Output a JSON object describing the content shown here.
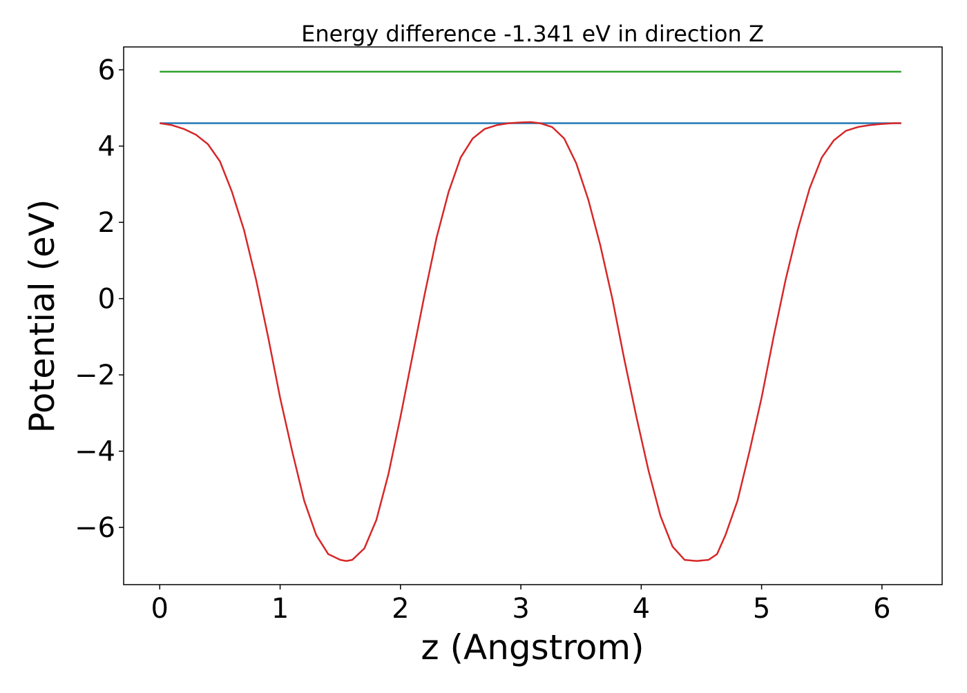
{
  "chart_data": {
    "type": "line",
    "title": "Energy difference -1.341 eV in direction Z",
    "xlabel": "z (Angstrom)",
    "ylabel": "Potential (eV)",
    "xlim": [
      -0.3,
      6.5
    ],
    "ylim": [
      -7.5,
      6.6
    ],
    "xticks": [
      0,
      1,
      2,
      3,
      4,
      5,
      6
    ],
    "xtick_labels": [
      "0",
      "1",
      "2",
      "3",
      "4",
      "5",
      "6"
    ],
    "yticks": [
      -6,
      -4,
      -2,
      0,
      2,
      4,
      6
    ],
    "ytick_labels": [
      "−6",
      "−4",
      "−2",
      "0",
      "2",
      "4",
      "6"
    ],
    "grid": false,
    "series": [
      {
        "color": "#2ca02c",
        "x": [
          0,
          6.16
        ],
        "y": [
          5.95,
          5.95
        ]
      },
      {
        "color": "#1f77b4",
        "x": [
          0,
          6.16
        ],
        "y": [
          4.6,
          4.6
        ]
      },
      {
        "color": "#d62728",
        "x": [
          0,
          0.1,
          0.2,
          0.3,
          0.4,
          0.5,
          0.6,
          0.7,
          0.8,
          0.9,
          1.0,
          1.1,
          1.2,
          1.3,
          1.4,
          1.5,
          1.55,
          1.6,
          1.7,
          1.8,
          1.9,
          2.0,
          2.1,
          2.2,
          2.3,
          2.4,
          2.5,
          2.6,
          2.7,
          2.8,
          2.9,
          3.0,
          3.08,
          3.16,
          3.26,
          3.36,
          3.46,
          3.56,
          3.66,
          3.76,
          3.86,
          3.96,
          4.06,
          4.16,
          4.26,
          4.36,
          4.46,
          4.56,
          4.63,
          4.7,
          4.8,
          4.9,
          5.0,
          5.1,
          5.2,
          5.3,
          5.4,
          5.5,
          5.6,
          5.7,
          5.8,
          5.9,
          6.0,
          6.1,
          6.16
        ],
        "y": [
          4.6,
          4.55,
          4.45,
          4.3,
          4.05,
          3.6,
          2.8,
          1.8,
          0.5,
          -1.0,
          -2.6,
          -4.0,
          -5.3,
          -6.2,
          -6.7,
          -6.85,
          -6.88,
          -6.85,
          -6.55,
          -5.8,
          -4.6,
          -3.1,
          -1.5,
          0.1,
          1.6,
          2.8,
          3.7,
          4.2,
          4.45,
          4.55,
          4.6,
          4.62,
          4.63,
          4.6,
          4.5,
          4.2,
          3.55,
          2.6,
          1.4,
          0.0,
          -1.6,
          -3.1,
          -4.5,
          -5.7,
          -6.5,
          -6.85,
          -6.88,
          -6.85,
          -6.7,
          -6.2,
          -5.3,
          -4.0,
          -2.6,
          -1.0,
          0.5,
          1.8,
          2.9,
          3.7,
          4.15,
          4.4,
          4.5,
          4.55,
          4.58,
          4.6,
          4.6
        ]
      }
    ]
  }
}
